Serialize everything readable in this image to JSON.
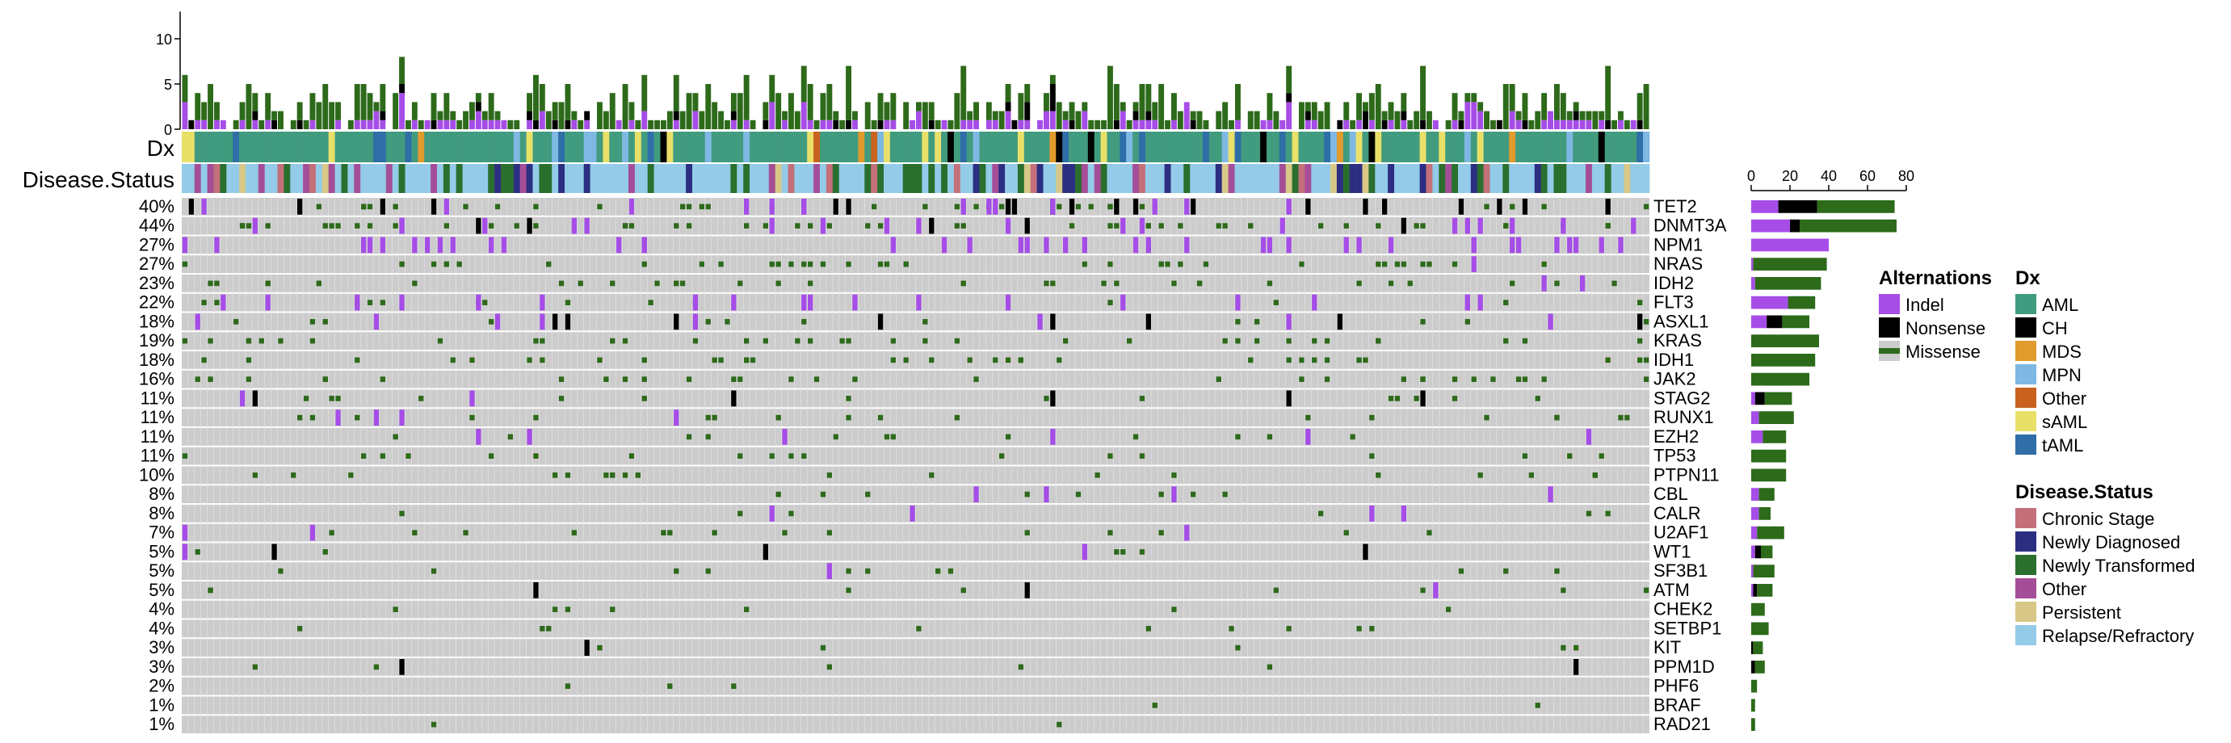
{
  "chart_data": {
    "type": "oncoprint",
    "n_samples": 230,
    "genes": [
      "TET2",
      "DNMT3A",
      "NPM1",
      "NRAS",
      "IDH2",
      "FLT3",
      "ASXL1",
      "KRAS",
      "IDH1",
      "JAK2",
      "STAG2",
      "RUNX1",
      "EZH2",
      "TP53",
      "PTPN11",
      "CBL",
      "CALR",
      "U2AF1",
      "WT1",
      "SF3B1",
      "ATM",
      "CHEK2",
      "SETBP1",
      "KIT",
      "PPM1D",
      "PHF6",
      "BRAF",
      "RAD21"
    ],
    "frequencies": [
      "40%",
      "44%",
      "27%",
      "27%",
      "23%",
      "22%",
      "18%",
      "19%",
      "18%",
      "16%",
      "11%",
      "11%",
      "11%",
      "11%",
      "10%",
      "8%",
      "8%",
      "7%",
      "5%",
      "5%",
      "5%",
      "4%",
      "4%",
      "3%",
      "3%",
      "2%",
      "1%",
      "1%"
    ],
    "gene_counts": {
      "Missense": [
        40,
        50,
        0,
        38,
        34,
        14,
        14,
        35,
        33,
        30,
        14,
        18,
        12,
        18,
        18,
        8,
        6,
        14,
        6,
        11,
        8,
        7,
        9,
        5,
        5,
        3,
        2,
        2
      ],
      "Nonsense": [
        20,
        5,
        0,
        0,
        0,
        0,
        8,
        0,
        0,
        0,
        5,
        0,
        0,
        0,
        0,
        0,
        0,
        0,
        3,
        0,
        2,
        0,
        0,
        1,
        2,
        0,
        0,
        0
      ],
      "Indel": [
        14,
        20,
        40,
        1,
        2,
        19,
        8,
        0,
        0,
        0,
        2,
        4,
        6,
        0,
        0,
        4,
        4,
        3,
        2,
        1,
        1,
        0,
        0,
        0,
        0,
        0,
        0,
        0
      ]
    },
    "sample_axis": {
      "ticks": [
        0,
        5,
        10
      ],
      "max": 13
    },
    "gene_axis": {
      "ticks": [
        0,
        20,
        40,
        60,
        80
      ],
      "max": 80
    },
    "tracks": {
      "dx_label": "Dx",
      "status_label": "Disease.Status"
    },
    "legends": [
      {
        "title": "Alternations",
        "items": [
          {
            "label": "Indel",
            "color": "#a64de8"
          },
          {
            "label": "Nonsense",
            "color": "#000000"
          },
          {
            "label": "Missense",
            "color": "#2d6a1a"
          }
        ]
      },
      {
        "title": "Dx",
        "items": [
          {
            "label": "AML",
            "color": "#419b7f"
          },
          {
            "label": "CH",
            "color": "#000000"
          },
          {
            "label": "MDS",
            "color": "#e09b2d"
          },
          {
            "label": "MPN",
            "color": "#7fb8e3"
          },
          {
            "label": "Other",
            "color": "#c8621e"
          },
          {
            "label": "sAML",
            "color": "#e9e06a"
          },
          {
            "label": "tAML",
            "color": "#2f6ea7"
          }
        ]
      },
      {
        "title": "Disease.Status",
        "items": [
          {
            "label": "Chronic Stage",
            "color": "#c3707a"
          },
          {
            "label": "Newly Diagnosed",
            "color": "#2c2e82"
          },
          {
            "label": "Newly Transformed",
            "color": "#2a6f2e"
          },
          {
            "label": "Other",
            "color": "#a54e98"
          },
          {
            "label": "Persistent",
            "color": "#d8c887"
          },
          {
            "label": "Relapse/Refractory",
            "color": "#93cbe8"
          }
        ]
      }
    ]
  }
}
